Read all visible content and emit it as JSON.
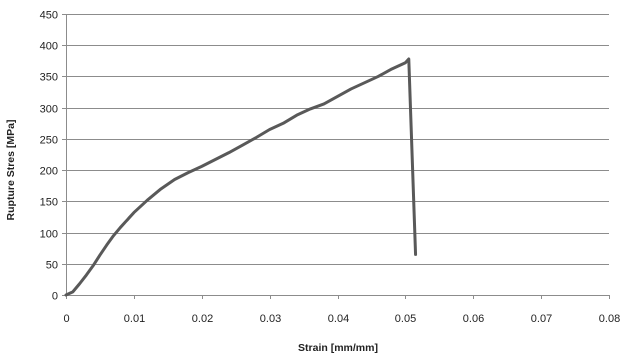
{
  "chart_data": {
    "type": "line",
    "title": "",
    "xlabel": "Strain [mm/mm]",
    "ylabel": "Rupture Stres [MPa]",
    "xlim": [
      0,
      0.08
    ],
    "ylim": [
      0,
      450
    ],
    "x_ticks": [
      "0",
      "0.01",
      "0.02",
      "0.03",
      "0.04",
      "0.05",
      "0.06",
      "0.07",
      "0.08"
    ],
    "y_ticks": [
      "0",
      "50",
      "100",
      "150",
      "200",
      "250",
      "300",
      "350",
      "400",
      "450"
    ],
    "grid": {
      "horizontal": true,
      "vertical": false
    },
    "legend": "none",
    "series": [
      {
        "color": "#595959",
        "x": [
          0,
          0.001,
          0.002,
          0.003,
          0.004,
          0.005,
          0.006,
          0.007,
          0.008,
          0.009,
          0.01,
          0.012,
          0.014,
          0.016,
          0.018,
          0.02,
          0.022,
          0.024,
          0.026,
          0.028,
          0.03,
          0.032,
          0.034,
          0.036,
          0.038,
          0.04,
          0.042,
          0.044,
          0.046,
          0.048,
          0.05,
          0.0505,
          0.0515
        ],
        "y": [
          0,
          5,
          18,
          32,
          47,
          64,
          80,
          95,
          108,
          120,
          132,
          152,
          170,
          185,
          196,
          206,
          217,
          228,
          240,
          252,
          265,
          275,
          288,
          298,
          306,
          318,
          330,
          340,
          350,
          362,
          372,
          378,
          65
        ]
      }
    ]
  }
}
